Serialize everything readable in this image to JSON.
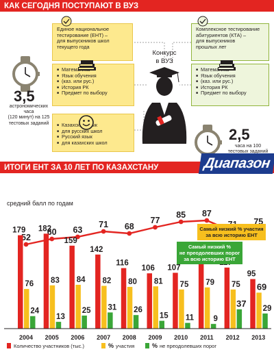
{
  "header": {
    "top_title": "КАК СЕГОДНЯ ПОСТУПАЮТ В ВУЗ",
    "bottom_title": "ИТОГИ ЕНТ ЗА 10 ЛЕТ ПО КАЗАХСТАНУ"
  },
  "infographic": {
    "center_label": [
      "Конкурс",
      "в ВУЗ"
    ],
    "ent": {
      "lines": [
        "Единое национальное",
        "тестирование (ЕНТ) –",
        "для выпускников школ",
        "текущего года"
      ]
    },
    "kta": {
      "lines": [
        "Комплексное тестирование",
        "абитуриентов (КТА) –",
        "для выпускников",
        "прошлых лет"
      ]
    },
    "subjects_left": [
      "Математика",
      "Язык обучения",
      "(каз. или рус.)",
      "История РК",
      "Предмет по выбору"
    ],
    "subjects_right": [
      "Математика",
      "Язык обучения",
      "(каз. или рус.)",
      "История РК",
      "Предмет по выбору"
    ],
    "languages": [
      "Казахский язык",
      "для русских школ",
      "Русский язык",
      "для казахских школ"
    ],
    "time_left": {
      "value": "3,5",
      "lines": [
        "астрономических",
        "часа",
        "(120 минут) на 125",
        "тестовых заданий"
      ]
    },
    "time_right": {
      "value": "2,5",
      "lines": [
        "часа на 100",
        "тестовых заданий"
      ]
    }
  },
  "logo": {
    "text": "Диапазон"
  },
  "colors": {
    "red": "#e32521",
    "yellow": "#f7bf1e",
    "green": "#3aa637",
    "navy": "#1d3c8e",
    "green_box": "#eef5dc",
    "yellow_box": "#fde98e"
  },
  "chart_data": {
    "type": "bar",
    "title": "средний балл по годам",
    "categories": [
      "2004",
      "2005",
      "2006",
      "2007",
      "2008",
      "2009",
      "2010",
      "2011",
      "2012",
      "2013"
    ],
    "average_score": [
      52,
      60,
      63,
      71,
      68,
      77,
      85,
      87,
      71,
      75
    ],
    "series": [
      {
        "name": "Количество участников (тыс.)",
        "values": [
          179,
          182,
          159,
          142,
          116,
          106,
          107,
          126,
          117,
          95
        ]
      },
      {
        "name": "% участия",
        "values": [
          76,
          83,
          84,
          82,
          80,
          81,
          75,
          79,
          75,
          69
        ]
      },
      {
        "name": "% не преодолевших порог",
        "values": [
          24,
          13,
          25,
          31,
          26,
          15,
          11,
          9,
          37,
          29
        ]
      }
    ],
    "annotations": [
      {
        "lines": [
          "Самый низкий % участия",
          "за всю историю ЕНТ"
        ]
      },
      {
        "lines": [
          "Самый низкий %",
          "не преодолевших порог",
          "за всю историю ЕНТ"
        ]
      }
    ],
    "legend": [
      {
        "symbol": "",
        "label": "Количество участников (тыс.)"
      },
      {
        "symbol": "%",
        "label": "участия"
      },
      {
        "symbol": "%",
        "label": "не преодолевших порог"
      }
    ]
  }
}
